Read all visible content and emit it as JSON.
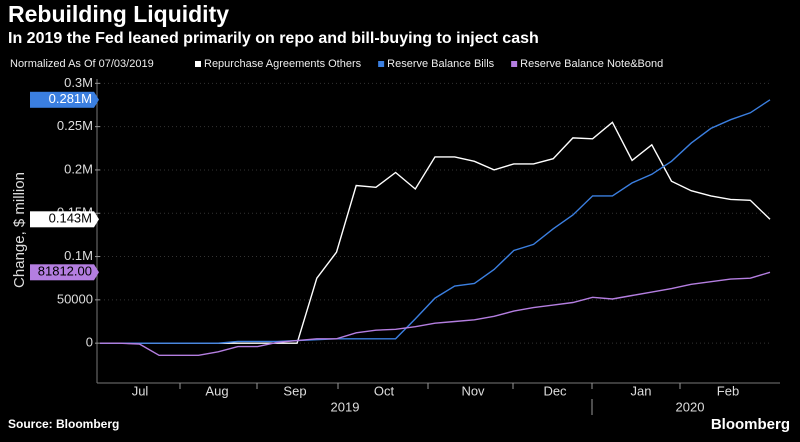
{
  "chart_data": {
    "type": "line",
    "title": "Rebuilding Liquidity",
    "subtitle": "In 2019 the Fed leaned primarily on repo and bill-buying to inject cash",
    "legend_note": "Normalized As Of 07/03/2019",
    "y_label": "Change, $ million",
    "source": "Source: Bloomberg",
    "brand": "Bloomberg",
    "x_labels": [
      "Jul",
      "Aug",
      "Sep",
      "Oct",
      "Nov",
      "Dec",
      "Jan",
      "Feb"
    ],
    "year_labels": [
      "2019",
      "2020"
    ],
    "ylim": [
      -46000,
      305000
    ],
    "yticks": [
      0,
      50000,
      {
        "value": 100000,
        "label": "0.1M"
      },
      {
        "value": 150000,
        "label": "0.15M"
      },
      {
        "value": 200000,
        "label": "0.2M"
      },
      {
        "value": 250000,
        "label": "0.25M"
      },
      {
        "value": 300000,
        "label": "0.3M"
      }
    ],
    "grid": true,
    "series": [
      {
        "name": "Repurchase Agreements Others",
        "color": "#ffffff",
        "values": [
          0,
          0,
          0,
          0,
          0,
          0,
          0,
          0,
          0,
          0,
          0,
          75000,
          105000,
          182000,
          180000,
          197000,
          178000,
          215000,
          215000,
          210000,
          200000,
          207000,
          207000,
          213000,
          237000,
          236000,
          255000,
          211000,
          229000,
          187000,
          176000,
          170000,
          166000,
          165000,
          143000
        ],
        "value_labels": [
          null,
          null,
          null,
          null,
          null,
          null,
          null,
          null,
          null,
          null,
          null,
          null,
          null,
          null,
          null,
          null,
          null,
          null,
          null,
          null,
          null,
          null,
          null,
          null,
          null,
          null,
          null,
          null,
          null,
          null,
          null,
          null,
          null,
          null,
          "0.143M"
        ]
      },
      {
        "name": "Reserve Balance Bills",
        "color": "#3b7fe0",
        "values": [
          0,
          0,
          0,
          0,
          0,
          0,
          0,
          2000,
          2000,
          2000,
          3000,
          4000,
          5000,
          5000,
          5000,
          5000,
          28000,
          52000,
          66000,
          69000,
          85000,
          107000,
          114000,
          132000,
          148000,
          170000,
          170000,
          185000,
          195000,
          210000,
          231000,
          248000,
          258000,
          266000,
          281000
        ],
        "value_labels": [
          null,
          null,
          null,
          null,
          null,
          null,
          null,
          null,
          null,
          null,
          null,
          null,
          null,
          null,
          null,
          null,
          null,
          null,
          null,
          null,
          null,
          null,
          null,
          null,
          null,
          null,
          null,
          null,
          null,
          null,
          null,
          null,
          null,
          null,
          "0.281M"
        ]
      },
      {
        "name": "Reserve Balance Note&Bond",
        "color": "#b47ee0",
        "values": [
          0,
          0,
          -1000,
          -14000,
          -14000,
          -14000,
          -10000,
          -4000,
          -4000,
          1000,
          3000,
          5000,
          5000,
          12000,
          15000,
          16000,
          19000,
          23000,
          25000,
          27000,
          31000,
          37000,
          41000,
          44000,
          47000,
          53000,
          51000,
          55000,
          59000,
          63000,
          68000,
          71000,
          74000,
          75000,
          81812
        ],
        "value_labels": [
          null,
          null,
          null,
          null,
          null,
          null,
          null,
          null,
          null,
          null,
          null,
          null,
          null,
          null,
          null,
          null,
          null,
          null,
          null,
          null,
          null,
          null,
          null,
          null,
          null,
          null,
          null,
          null,
          null,
          null,
          null,
          null,
          null,
          null,
          "81812.00"
        ]
      }
    ]
  }
}
